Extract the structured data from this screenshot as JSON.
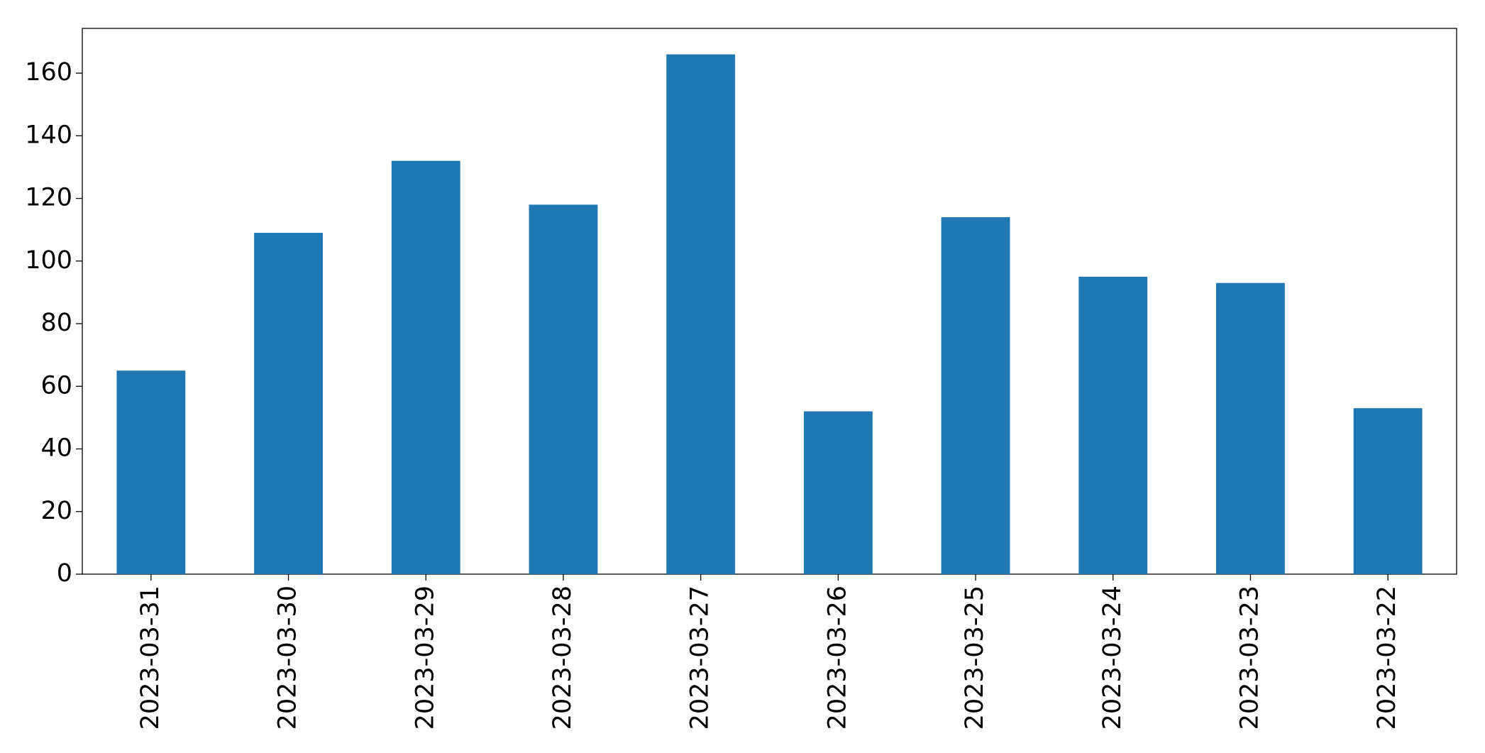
{
  "chart_data": {
    "type": "bar",
    "categories": [
      "2023-03-31",
      "2023-03-30",
      "2023-03-29",
      "2023-03-28",
      "2023-03-27",
      "2023-03-26",
      "2023-03-25",
      "2023-03-24",
      "2023-03-23",
      "2023-03-22"
    ],
    "values": [
      65,
      109,
      132,
      118,
      166,
      52,
      114,
      95,
      93,
      53
    ],
    "color": "#1f77b4",
    "ylim": [
      0,
      174.3
    ],
    "yticks": [
      0,
      20,
      40,
      60,
      80,
      100,
      120,
      140,
      160
    ],
    "grid": false
  }
}
